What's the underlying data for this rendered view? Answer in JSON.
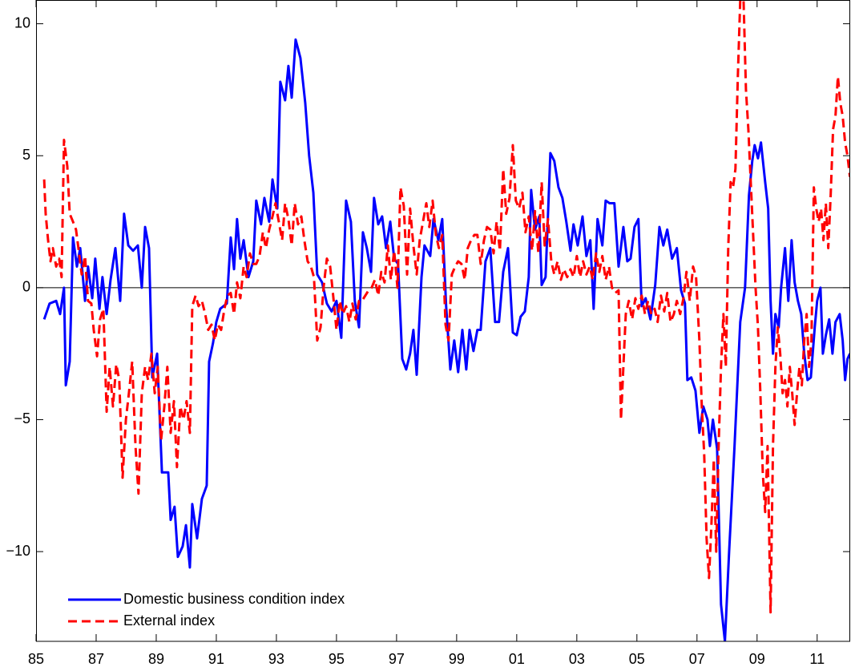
{
  "chart_data": {
    "type": "line",
    "xlim": [
      1985,
      2012.1
    ],
    "ylim": [
      -13.4,
      10.9
    ],
    "xticks": [
      {
        "value": 1985,
        "label": "85"
      },
      {
        "value": 1987,
        "label": "87"
      },
      {
        "value": 1989,
        "label": "89"
      },
      {
        "value": 1991,
        "label": "91"
      },
      {
        "value": 1993,
        "label": "93"
      },
      {
        "value": 1995,
        "label": "95"
      },
      {
        "value": 1997,
        "label": "97"
      },
      {
        "value": 1999,
        "label": "99"
      },
      {
        "value": 2001,
        "label": "01"
      },
      {
        "value": 2003,
        "label": "03"
      },
      {
        "value": 2005,
        "label": "05"
      },
      {
        "value": 2007,
        "label": "07"
      },
      {
        "value": 2009,
        "label": "09"
      },
      {
        "value": 2011,
        "label": "11"
      }
    ],
    "yticks": [
      {
        "value": -10,
        "label": "−10"
      },
      {
        "value": -5,
        "label": "−5"
      },
      0,
      5,
      10
    ],
    "zero_line": true,
    "legend": "lower left",
    "series": [
      {
        "name": "Domestic business condition index",
        "color": "#0000ff",
        "style": "solid",
        "x": [
          1985.27,
          1985.45,
          1985.67,
          1985.8,
          1985.93,
          1985.99,
          1986.12,
          1986.23,
          1986.36,
          1986.47,
          1986.63,
          1986.73,
          1986.87,
          1986.97,
          1987.11,
          1987.21,
          1987.35,
          1987.48,
          1987.64,
          1987.8,
          1987.93,
          1988.07,
          1988.23,
          1988.39,
          1988.52,
          1988.63,
          1988.76,
          1988.87,
          1989.03,
          1989.19,
          1989.4,
          1989.48,
          1989.61,
          1989.72,
          1989.88,
          1989.99,
          1990.12,
          1990.2,
          1990.36,
          1990.52,
          1990.68,
          1990.76,
          1990.89,
          1991.0,
          1991.13,
          1991.35,
          1991.48,
          1991.59,
          1991.69,
          1991.8,
          1991.91,
          1992.07,
          1992.23,
          1992.33,
          1992.49,
          1992.6,
          1992.76,
          1992.87,
          1993.03,
          1993.13,
          1993.29,
          1993.4,
          1993.51,
          1993.64,
          1993.8,
          1993.96,
          1994.09,
          1994.23,
          1994.36,
          1994.52,
          1994.68,
          1994.84,
          1995.0,
          1995.16,
          1995.32,
          1995.48,
          1995.61,
          1995.75,
          1995.88,
          1996.01,
          1996.15,
          1996.25,
          1996.39,
          1996.52,
          1996.65,
          1996.79,
          1996.92,
          1997.05,
          1997.19,
          1997.32,
          1997.45,
          1997.56,
          1997.67,
          1997.83,
          1997.93,
          1998.12,
          1998.23,
          1998.39,
          1998.52,
          1998.65,
          1998.79,
          1998.92,
          1999.05,
          1999.19,
          1999.32,
          1999.43,
          1999.56,
          1999.69,
          1999.8,
          1999.96,
          2000.12,
          2000.28,
          2000.41,
          2000.55,
          2000.71,
          2000.87,
          2001.0,
          2001.13,
          2001.27,
          2001.4,
          2001.48,
          2001.61,
          2001.75,
          2001.83,
          2001.96,
          2002.12,
          2002.25,
          2002.39,
          2002.52,
          2002.65,
          2002.79,
          2002.89,
          2003.03,
          2003.19,
          2003.32,
          2003.45,
          2003.56,
          2003.69,
          2003.85,
          2003.96,
          2004.09,
          2004.25,
          2004.39,
          2004.55,
          2004.68,
          2004.79,
          2004.92,
          2005.05,
          2005.16,
          2005.29,
          2005.45,
          2005.61,
          2005.75,
          2005.88,
          2006.01,
          2006.17,
          2006.33,
          2006.47,
          2006.6,
          2006.68,
          2006.81,
          2006.95,
          2007.08,
          2007.21,
          2007.35,
          2007.43,
          2007.53,
          2007.67,
          2007.8,
          2007.93,
          2008.07,
          2008.25,
          2008.44,
          2008.6,
          2008.73,
          2008.84,
          2008.92,
          2009.03,
          2009.13,
          2009.27,
          2009.37,
          2009.45,
          2009.53,
          2009.61,
          2009.72,
          2009.8,
          2009.93,
          2010.04,
          2010.15,
          2010.25,
          2010.36,
          2010.47,
          2010.57,
          2010.68,
          2010.79,
          2010.92,
          2011.0,
          2011.11,
          2011.19,
          2011.29,
          2011.4,
          2011.51,
          2011.61,
          2011.75,
          2011.85,
          2011.93,
          2012.01,
          2012.09
        ],
        "values": [
          -1.2,
          -0.6,
          -0.5,
          -1.0,
          0.0,
          -3.7,
          -2.8,
          1.9,
          0.8,
          1.5,
          -0.5,
          0.8,
          -0.4,
          1.1,
          -0.8,
          0.4,
          -1.0,
          0.3,
          1.5,
          -0.5,
          2.8,
          1.6,
          1.4,
          1.6,
          0.0,
          2.3,
          1.5,
          -3.4,
          -2.5,
          -7.0,
          -7.0,
          -8.8,
          -8.3,
          -10.2,
          -9.8,
          -9.0,
          -10.6,
          -8.2,
          -9.5,
          -8.0,
          -7.5,
          -2.8,
          -2.1,
          -1.3,
          -0.8,
          -0.6,
          1.9,
          0.7,
          2.6,
          1.1,
          1.8,
          0.4,
          1.0,
          3.3,
          2.4,
          3.4,
          2.5,
          4.1,
          3.0,
          7.8,
          7.1,
          8.4,
          7.2,
          9.4,
          8.7,
          7.0,
          5.0,
          3.6,
          0.5,
          0.2,
          -0.6,
          -0.9,
          -0.5,
          -1.9,
          3.3,
          2.5,
          -0.5,
          -1.5,
          2.1,
          1.5,
          0.6,
          3.4,
          2.4,
          2.7,
          1.5,
          2.5,
          1.1,
          0.9,
          -2.7,
          -3.1,
          -2.5,
          -1.6,
          -3.3,
          0.4,
          1.6,
          1.2,
          2.6,
          1.8,
          2.6,
          -0.7,
          -3.1,
          -2.0,
          -3.2,
          -1.6,
          -3.1,
          -1.6,
          -2.4,
          -1.6,
          -1.6,
          1.0,
          1.5,
          -1.3,
          -1.3,
          0.6,
          1.5,
          -1.7,
          -1.8,
          -1.1,
          -0.9,
          0.4,
          3.7,
          2.2,
          2.7,
          0.1,
          0.4,
          5.1,
          4.8,
          3.8,
          3.4,
          2.5,
          1.4,
          2.4,
          1.6,
          2.7,
          1.2,
          1.8,
          -0.8,
          2.6,
          1.6,
          3.3,
          3.2,
          3.2,
          0.8,
          2.3,
          1.0,
          1.1,
          2.3,
          2.6,
          -0.7,
          -0.4,
          -1.2,
          0.1,
          2.3,
          1.6,
          2.2,
          1.1,
          1.5,
          -0.1,
          -0.6,
          -3.5,
          -3.4,
          -3.9,
          -5.5,
          -4.5,
          -5.0,
          -6.0,
          -5.0,
          -6.1,
          -12.0,
          -13.4,
          -10.0,
          -6.0,
          -1.3,
          0.0,
          3.5,
          4.8,
          5.4,
          4.9,
          5.5,
          4.0,
          3.0,
          -0.5,
          -2.5,
          -1.0,
          -1.5,
          0.0,
          1.5,
          -0.5,
          1.8,
          0.2,
          -0.5,
          -1.0,
          -2.5,
          -3.5,
          -3.4,
          -1.5,
          -0.5,
          0.0,
          -2.5,
          -1.8,
          -1.2,
          -2.5,
          -1.3,
          -1.0,
          -2.0,
          -3.5,
          -2.7,
          -2.5
        ]
      },
      {
        "name": "External index",
        "color": "#ff0000",
        "style": "dashed",
        "x": [
          1985.27,
          1985.32,
          1985.4,
          1985.48,
          1985.56,
          1985.67,
          1985.77,
          1985.85,
          1985.93,
          1986.04,
          1986.12,
          1986.23,
          1986.33,
          1986.41,
          1986.52,
          1986.63,
          1986.73,
          1986.84,
          1986.92,
          1987.03,
          1987.13,
          1987.24,
          1987.35,
          1987.45,
          1987.56,
          1987.67,
          1987.77,
          1987.88,
          1987.99,
          1988.09,
          1988.2,
          1988.31,
          1988.41,
          1988.52,
          1988.63,
          1988.73,
          1988.84,
          1988.95,
          1989.05,
          1989.16,
          1989.27,
          1989.37,
          1989.48,
          1989.59,
          1989.69,
          1989.8,
          1989.91,
          1990.01,
          1990.12,
          1990.2,
          1990.31,
          1990.41,
          1990.52,
          1990.63,
          1990.73,
          1990.84,
          1990.95,
          1991.05,
          1991.16,
          1991.27,
          1991.37,
          1991.48,
          1991.59,
          1991.69,
          1991.8,
          1991.91,
          1992.01,
          1992.12,
          1992.23,
          1992.33,
          1992.44,
          1992.55,
          1992.65,
          1992.76,
          1992.87,
          1992.97,
          1993.08,
          1993.19,
          1993.29,
          1993.4,
          1993.51,
          1993.61,
          1993.72,
          1993.83,
          1993.93,
          1994.04,
          1994.15,
          1994.25,
          1994.36,
          1994.47,
          1994.57,
          1994.68,
          1994.79,
          1994.89,
          1995.0,
          1995.11,
          1995.21,
          1995.32,
          1995.43,
          1995.53,
          1995.64,
          1995.75,
          1995.85,
          1995.96,
          1996.07,
          1996.17,
          1996.28,
          1996.39,
          1996.49,
          1996.6,
          1996.71,
          1996.81,
          1996.92,
          1997.03,
          1997.13,
          1997.24,
          1997.35,
          1997.45,
          1997.56,
          1997.67,
          1997.77,
          1997.88,
          1997.99,
          1998.09,
          1998.2,
          1998.31,
          1998.41,
          1998.52,
          1998.63,
          1998.73,
          1998.84,
          1998.95,
          1999.05,
          1999.16,
          1999.27,
          1999.37,
          1999.48,
          1999.59,
          1999.69,
          1999.8,
          1999.91,
          2000.01,
          2000.12,
          2000.23,
          2000.33,
          2000.44,
          2000.55,
          2000.65,
          2000.76,
          2000.87,
          2000.97,
          2001.08,
          2001.19,
          2001.29,
          2001.4,
          2001.51,
          2001.61,
          2001.72,
          2001.83,
          2001.93,
          2002.04,
          2002.15,
          2002.25,
          2002.36,
          2002.47,
          2002.57,
          2002.68,
          2002.79,
          2002.89,
          2003.0,
          2003.11,
          2003.21,
          2003.32,
          2003.43,
          2003.53,
          2003.64,
          2003.75,
          2003.85,
          2003.96,
          2004.07,
          2004.17,
          2004.28,
          2004.39,
          2004.47,
          2004.55,
          2004.63,
          2004.73,
          2004.84,
          2004.95,
          2005.05,
          2005.16,
          2005.27,
          2005.37,
          2005.48,
          2005.59,
          2005.69,
          2005.8,
          2005.91,
          2006.01,
          2006.12,
          2006.23,
          2006.33,
          2006.44,
          2006.55,
          2006.65,
          2006.76,
          2006.87,
          2006.97,
          2007.08,
          2007.16,
          2007.24,
          2007.32,
          2007.4,
          2007.48,
          2007.56,
          2007.64,
          2007.72,
          2007.8,
          2007.88,
          2007.96,
          2008.04,
          2008.12,
          2008.2,
          2008.28,
          2008.36,
          2008.44,
          2008.55,
          2008.63,
          2008.71,
          2008.79,
          2008.87,
          2008.95,
          2009.03,
          2009.11,
          2009.19,
          2009.27,
          2009.35,
          2009.45,
          2009.53,
          2009.61,
          2009.69,
          2009.77,
          2009.85,
          2009.93,
          2010.01,
          2010.09,
          2010.17,
          2010.25,
          2010.33,
          2010.41,
          2010.49,
          2010.57,
          2010.65,
          2010.73,
          2010.81,
          2010.89,
          2010.97,
          2011.05,
          2011.13,
          2011.21,
          2011.29,
          2011.37,
          2011.45,
          2011.53,
          2011.61,
          2011.69,
          2011.77,
          2011.85,
          2011.93,
          2012.01,
          2012.09
        ],
        "values": [
          4.1,
          2.8,
          1.8,
          1.0,
          1.5,
          0.8,
          1.1,
          0.4,
          5.6,
          4.6,
          2.8,
          2.5,
          2.2,
          1.5,
          0.5,
          1.2,
          -0.5,
          -0.6,
          -1.6,
          -2.6,
          -1.2,
          -0.8,
          -4.7,
          -3.0,
          -4.5,
          -2.9,
          -3.5,
          -7.2,
          -5.0,
          -4.0,
          -2.8,
          -6.0,
          -7.8,
          -4.0,
          -3.0,
          -3.5,
          -2.5,
          -4.0,
          -3.0,
          -5.8,
          -4.5,
          -3.0,
          -5.5,
          -4.3,
          -6.8,
          -4.5,
          -5.0,
          -4.3,
          -5.5,
          -0.7,
          -0.3,
          -0.7,
          -0.5,
          -1.0,
          -1.6,
          -1.4,
          -2.0,
          -1.4,
          -1.6,
          -0.8,
          -0.3,
          -0.2,
          -1.0,
          0.2,
          -0.4,
          0.8,
          0.4,
          1.3,
          0.9,
          0.9,
          1.2,
          2.1,
          1.5,
          2.2,
          2.7,
          3.2,
          2.5,
          1.8,
          3.2,
          2.6,
          1.6,
          3.2,
          2.4,
          2.7,
          1.8,
          1.0,
          0.8,
          0.4,
          -2.0,
          -1.5,
          0.0,
          1.1,
          0.8,
          -0.3,
          -1.6,
          -0.5,
          -1.0,
          -0.7,
          -1.3,
          -0.6,
          -1.2,
          -0.5,
          -0.5,
          -0.3,
          -0.1,
          0.0,
          0.3,
          -0.3,
          0.6,
          0.2,
          1.6,
          0.3,
          1.4,
          0.0,
          3.8,
          3.1,
          0.5,
          3.0,
          1.6,
          0.5,
          1.8,
          2.5,
          3.2,
          2.3,
          3.3,
          2.0,
          1.5,
          2.0,
          -1.4,
          -2.0,
          0.5,
          0.8,
          1.0,
          0.9,
          0.3,
          1.5,
          1.8,
          2.0,
          2.0,
          0.9,
          1.8,
          2.3,
          2.2,
          1.3,
          2.5,
          1.4,
          4.5,
          2.8,
          3.4,
          5.4,
          3.3,
          3.0,
          3.6,
          2.1,
          2.7,
          1.4,
          2.9,
          1.3,
          4.0,
          1.6,
          2.6,
          1.0,
          0.5,
          1.0,
          0.3,
          0.7,
          0.4,
          0.7,
          0.4,
          1.2,
          0.4,
          1.0,
          0.5,
          0.8,
          0.3,
          1.3,
          0.6,
          1.2,
          0.3,
          0.8,
          0.0,
          -0.2,
          -0.1,
          -5.0,
          -3.0,
          -1.0,
          -0.5,
          -1.2,
          -0.4,
          -0.8,
          -0.3,
          -1.0,
          -0.5,
          -1.0,
          -0.8,
          -1.3,
          -0.3,
          -0.9,
          -0.2,
          -1.3,
          -1.0,
          -0.5,
          -1.0,
          -0.4,
          0.6,
          -0.5,
          0.8,
          0.4,
          -2.0,
          -4.5,
          -6.3,
          -9.5,
          -11.0,
          -9.0,
          -6.5,
          -10.0,
          -6.0,
          -3.0,
          -1.0,
          -3.0,
          1.5,
          4.0,
          3.8,
          4.5,
          8.0,
          10.9,
          10.9,
          7.5,
          6.0,
          4.0,
          2.0,
          0.0,
          -1.5,
          -4.0,
          -7.0,
          -8.5,
          -6.0,
          -12.3,
          -6.0,
          -3.0,
          -1.5,
          -2.5,
          -4.0,
          -3.5,
          -4.5,
          -3.0,
          -4.0,
          -5.2,
          -4.0,
          -3.0,
          -3.7,
          -2.0,
          -1.0,
          -3.0,
          -2.0,
          3.8,
          3.0,
          2.5,
          3.0,
          1.8,
          3.2,
          1.5,
          3.5,
          6.0,
          6.5,
          8.0,
          7.0,
          6.5,
          5.5,
          5.0,
          4.2
        ]
      }
    ]
  }
}
